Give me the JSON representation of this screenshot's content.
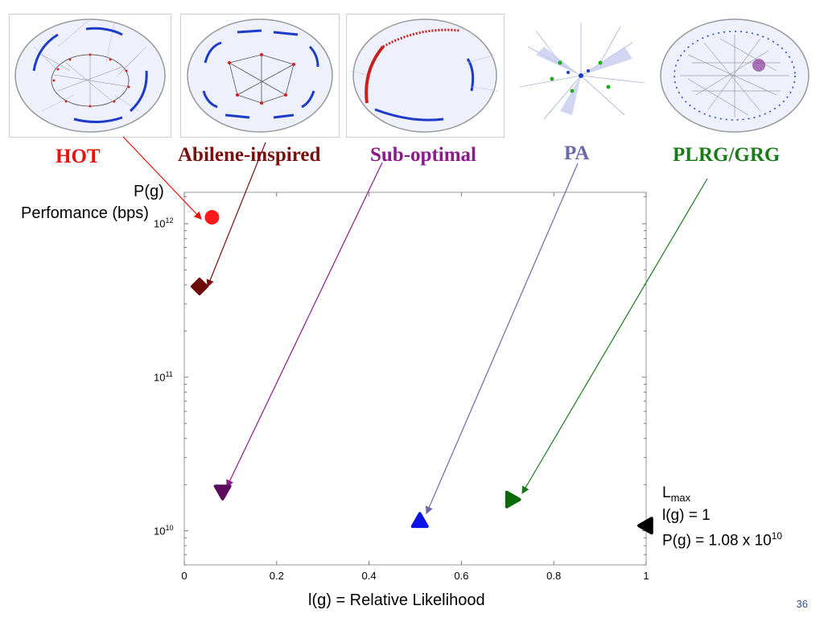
{
  "labels": {
    "hot": "HOT",
    "abilene": "Abilene-inspired",
    "suboptimal": "Sub-optimal",
    "pa": "PA",
    "plrg": "PLRG/GRG"
  },
  "colors": {
    "hot": "#e8120c",
    "abilene": "#7a0e0e",
    "suboptimal": "#8b1a8b",
    "pa": "#6a6aa8",
    "plrg": "#1a7a1a"
  },
  "thumbnails": [
    {
      "name": "hot",
      "icon": "network-topology-thumbnail"
    },
    {
      "name": "abilene",
      "icon": "network-topology-thumbnail"
    },
    {
      "name": "suboptimal",
      "icon": "network-topology-thumbnail"
    },
    {
      "name": "pa",
      "icon": "network-topology-thumbnail"
    },
    {
      "name": "plrg",
      "icon": "network-topology-thumbnail"
    }
  ],
  "yaxis": {
    "line1": "P(g)",
    "line2": "Perfomance (bps)"
  },
  "xaxis": {
    "label": "l(g) = Relative Likelihood"
  },
  "lmax": {
    "L": "L",
    "sub": "max",
    "line2": "l(g) = 1",
    "line3_prefix": "P(g) = 1.08 x 10",
    "line3_exp": "10"
  },
  "slide_number": "36",
  "chart_data": {
    "type": "scatter",
    "xlabel": "l(g) = Relative Likelihood",
    "ylabel": "P(g) Perfomance (bps)",
    "xlim": [
      0,
      1
    ],
    "ylim": [
      6000000000.0,
      1600000000000.0
    ],
    "yscale": "log",
    "xticks": [
      {
        "v": 0,
        "label": "0"
      },
      {
        "v": 0.2,
        "label": "0.2"
      },
      {
        "v": 0.4,
        "label": "0.4"
      },
      {
        "v": 0.6,
        "label": "0.6"
      },
      {
        "v": 0.8,
        "label": "0.8"
      },
      {
        "v": 1,
        "label": "1"
      }
    ],
    "yticks": [
      {
        "v": 10000000000.0,
        "base": "10",
        "exp": "10"
      },
      {
        "v": 100000000000.0,
        "base": "10",
        "exp": "11"
      },
      {
        "v": 1000000000000.0,
        "base": "10",
        "exp": "12"
      }
    ],
    "series": [
      {
        "name": "HOT",
        "x": 0.06,
        "y": 1100000000000.0,
        "marker": "circle",
        "color": "#ff1a1a"
      },
      {
        "name": "Abilene-inspired",
        "x": 0.033,
        "y": 390000000000.0,
        "marker": "diamond",
        "color": "#6b0d0d"
      },
      {
        "name": "Sub-optimal",
        "x": 0.083,
        "y": 18000000000.0,
        "marker": "triangle-down",
        "color": "#5c0a5c"
      },
      {
        "name": "PA",
        "x": 0.51,
        "y": 11600000000.0,
        "marker": "triangle-up",
        "color": "#0a14e8"
      },
      {
        "name": "PLRG/GRG",
        "x": 0.71,
        "y": 16000000000.0,
        "marker": "triangle-right",
        "color": "#0a6a0a"
      },
      {
        "name": "Lmax",
        "x": 1.0,
        "y": 10800000000.0,
        "marker": "triangle-left",
        "color": "#000000"
      }
    ]
  }
}
